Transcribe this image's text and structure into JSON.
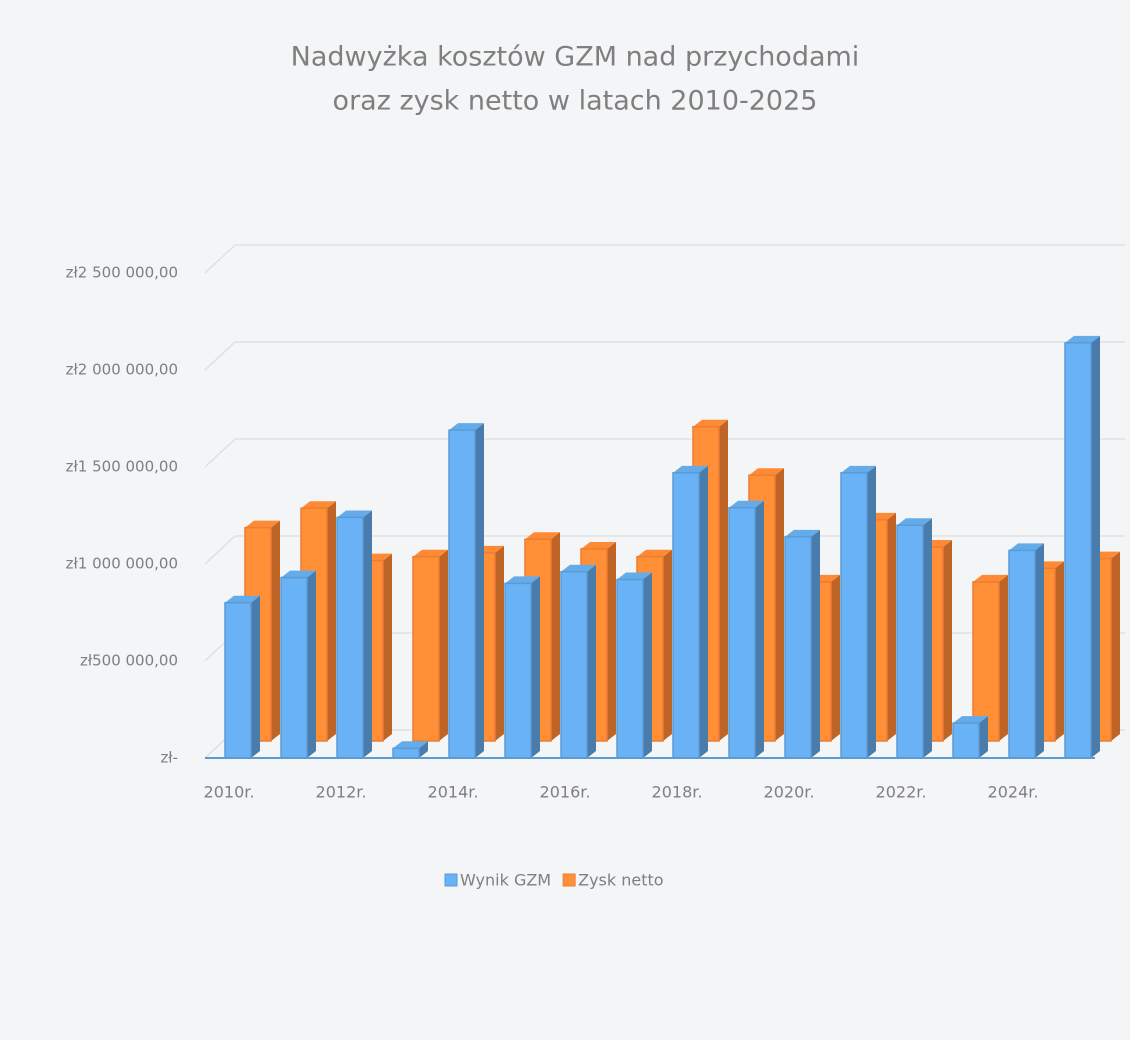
{
  "chart_data": {
    "type": "bar3d",
    "title": [
      "Nadwyżka kosztów GZM nad przychodami",
      "oraz zysk netto w latach 2010-2025"
    ],
    "categories": [
      "2010r.",
      null,
      "2012r.",
      null,
      "2014r.",
      null,
      "2016r.",
      null,
      "2018r.",
      null,
      "2020r.",
      null,
      "2022r.",
      null,
      "2024r.",
      null
    ],
    "series": [
      {
        "name": "Wynik GZM",
        "color": "#5b9bd5",
        "values": [
          800000,
          930000,
          1240000,
          50000,
          1690000,
          900000,
          960000,
          920000,
          1470000,
          1290000,
          1140000,
          1470000,
          1200000,
          180000,
          1070000,
          2140000
        ]
      },
      {
        "name": "Zysk netto",
        "color": "#ed7d31",
        "values": [
          1100000,
          1200000,
          930000,
          950000,
          970000,
          1040000,
          990000,
          950000,
          1620000,
          1370000,
          820000,
          1140000,
          1000000,
          820000,
          890000,
          940000
        ]
      }
    ],
    "ylim": [
      0,
      2500000
    ],
    "yticks": [
      {
        "value": 0,
        "label": "zł-"
      },
      {
        "value": 500000,
        "label": "zł500 000,00"
      },
      {
        "value": 1000000,
        "label": "zł1 000 000,00"
      },
      {
        "value": 1500000,
        "label": "zł1 500 000,00"
      },
      {
        "value": 2000000,
        "label": "zł2 000 000,00"
      },
      {
        "value": 2500000,
        "label": "zł2 500 000,00"
      }
    ],
    "grid": true,
    "legend": "bottom"
  }
}
